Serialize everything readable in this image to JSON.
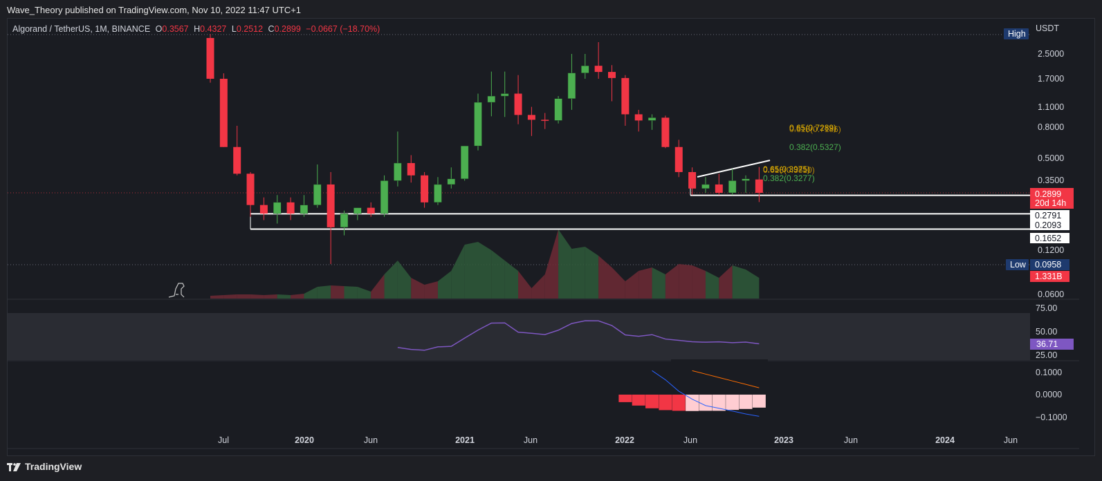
{
  "header": {
    "published": "Wave_Theory published on TradingView.com, Nov 10, 2022 11:47 UTC+1"
  },
  "legend": {
    "symbol": "Algorand / TetherUS, 1M, BINANCE",
    "o_label": "O",
    "o_value": "0.3567",
    "h_label": "H",
    "h_value": "0.4327",
    "l_label": "L",
    "l_value": "0.2512",
    "c_label": "C",
    "c_value": "0.2899",
    "change": "−0.0667 (−18.70%)"
  },
  "price_axis": {
    "currency": "USDT",
    "ticks": [
      "2.5000",
      "1.7000",
      "1.1000",
      "0.8000",
      "0.5000",
      "0.3500",
      "0.1200",
      "0.0600"
    ],
    "high_label": "High",
    "low_label": "Low",
    "low_value": "0.0958",
    "last_price": "0.2899",
    "countdown": "20d 14h",
    "level_1": "0.2791",
    "level_2": "0.2093",
    "level_3": "0.1652",
    "volume_value": "1.331B"
  },
  "rsi_axis": {
    "ticks": [
      "75.00",
      "50.00",
      "25.00"
    ],
    "value": "36.71"
  },
  "macd_axis": {
    "ticks": [
      "0.1000",
      "0.0000",
      "−0.1000"
    ]
  },
  "time_axis": [
    "Jul",
    "2020",
    "Jun",
    "2021",
    "Jun",
    "2022",
    "Jun",
    "2023",
    "Jun",
    "2024",
    "Jun"
  ],
  "fib_labels": {
    "upper_1": "0.65(0.7289)",
    "upper_2": "0.618(0.7186)",
    "upper_3": "0.382(0.5327)",
    "lower_1": "0.65(0.3975)",
    "lower_2": "0.618(0.3810)",
    "lower_3": "0.382(0.3277)"
  },
  "footer": {
    "brand": "TradingView"
  },
  "colors": {
    "up": "#4caf50",
    "down": "#f23645",
    "rsi": "#7e57c2",
    "macd": "#2962ff",
    "signal": "#ff6d00",
    "fib_yellow": "#e6b800",
    "fib_green": "#4caf50"
  },
  "chart_data": {
    "type": "candlestick",
    "title": "Algorand / TetherUS, 1M, BINANCE",
    "y_scale": "log",
    "candles": [
      {
        "date": "2019-06",
        "o": 3.2,
        "h": 3.4,
        "l": 1.6,
        "c": 1.7
      },
      {
        "date": "2019-07",
        "o": 1.7,
        "h": 1.85,
        "l": 0.59,
        "c": 0.59
      },
      {
        "date": "2019-08",
        "o": 0.59,
        "h": 0.82,
        "l": 0.38,
        "c": 0.39
      },
      {
        "date": "2019-09",
        "o": 0.39,
        "h": 0.4,
        "l": 0.2,
        "c": 0.24
      },
      {
        "date": "2019-10",
        "o": 0.24,
        "h": 0.27,
        "l": 0.19,
        "c": 0.21
      },
      {
        "date": "2019-11",
        "o": 0.21,
        "h": 0.28,
        "l": 0.18,
        "c": 0.25
      },
      {
        "date": "2019-12",
        "o": 0.25,
        "h": 0.27,
        "l": 0.19,
        "c": 0.21
      },
      {
        "date": "2020-01",
        "o": 0.21,
        "h": 0.28,
        "l": 0.2,
        "c": 0.24
      },
      {
        "date": "2020-02",
        "o": 0.24,
        "h": 0.45,
        "l": 0.23,
        "c": 0.33
      },
      {
        "date": "2020-03",
        "o": 0.33,
        "h": 0.4,
        "l": 0.096,
        "c": 0.17
      },
      {
        "date": "2020-04",
        "o": 0.17,
        "h": 0.22,
        "l": 0.15,
        "c": 0.21
      },
      {
        "date": "2020-05",
        "o": 0.21,
        "h": 0.23,
        "l": 0.19,
        "c": 0.23
      },
      {
        "date": "2020-06",
        "o": 0.23,
        "h": 0.25,
        "l": 0.2,
        "c": 0.21
      },
      {
        "date": "2020-07",
        "o": 0.21,
        "h": 0.38,
        "l": 0.2,
        "c": 0.35
      },
      {
        "date": "2020-08",
        "o": 0.35,
        "h": 0.75,
        "l": 0.32,
        "c": 0.46
      },
      {
        "date": "2020-09",
        "o": 0.46,
        "h": 0.52,
        "l": 0.34,
        "c": 0.38
      },
      {
        "date": "2020-10",
        "o": 0.38,
        "h": 0.4,
        "l": 0.23,
        "c": 0.25
      },
      {
        "date": "2020-11",
        "o": 0.25,
        "h": 0.37,
        "l": 0.24,
        "c": 0.33
      },
      {
        "date": "2020-12",
        "o": 0.33,
        "h": 0.43,
        "l": 0.31,
        "c": 0.36
      },
      {
        "date": "2021-01",
        "o": 0.36,
        "h": 0.6,
        "l": 0.35,
        "c": 0.6
      },
      {
        "date": "2021-02",
        "o": 0.6,
        "h": 1.35,
        "l": 0.56,
        "c": 1.18
      },
      {
        "date": "2021-03",
        "o": 1.18,
        "h": 1.9,
        "l": 0.95,
        "c": 1.3
      },
      {
        "date": "2021-04",
        "o": 1.3,
        "h": 1.9,
        "l": 0.94,
        "c": 1.35
      },
      {
        "date": "2021-05",
        "o": 1.35,
        "h": 1.8,
        "l": 0.84,
        "c": 0.97
      },
      {
        "date": "2021-06",
        "o": 0.97,
        "h": 1.1,
        "l": 0.7,
        "c": 0.9
      },
      {
        "date": "2021-07",
        "o": 0.9,
        "h": 1.0,
        "l": 0.78,
        "c": 0.89
      },
      {
        "date": "2021-08",
        "o": 0.89,
        "h": 1.3,
        "l": 0.85,
        "c": 1.25
      },
      {
        "date": "2021-09",
        "o": 1.25,
        "h": 2.5,
        "l": 1.05,
        "c": 1.86
      },
      {
        "date": "2021-10",
        "o": 1.86,
        "h": 2.5,
        "l": 1.7,
        "c": 2.08
      },
      {
        "date": "2021-11",
        "o": 2.08,
        "h": 3.0,
        "l": 1.7,
        "c": 1.89
      },
      {
        "date": "2021-12",
        "o": 1.89,
        "h": 2.1,
        "l": 1.2,
        "c": 1.72
      },
      {
        "date": "2022-01",
        "o": 1.72,
        "h": 1.8,
        "l": 0.82,
        "c": 0.98
      },
      {
        "date": "2022-02",
        "o": 0.98,
        "h": 1.05,
        "l": 0.75,
        "c": 0.89
      },
      {
        "date": "2022-03",
        "o": 0.89,
        "h": 0.98,
        "l": 0.77,
        "c": 0.93
      },
      {
        "date": "2022-04",
        "o": 0.93,
        "h": 0.96,
        "l": 0.58,
        "c": 0.59
      },
      {
        "date": "2022-05",
        "o": 0.59,
        "h": 0.66,
        "l": 0.37,
        "c": 0.4
      },
      {
        "date": "2022-06",
        "o": 0.4,
        "h": 0.43,
        "l": 0.28,
        "c": 0.31
      },
      {
        "date": "2022-07",
        "o": 0.31,
        "h": 0.37,
        "l": 0.29,
        "c": 0.33
      },
      {
        "date": "2022-08",
        "o": 0.33,
        "h": 0.39,
        "l": 0.28,
        "c": 0.29
      },
      {
        "date": "2022-09",
        "o": 0.29,
        "h": 0.42,
        "l": 0.28,
        "c": 0.35
      },
      {
        "date": "2022-10",
        "o": 0.35,
        "h": 0.38,
        "l": 0.29,
        "c": 0.36
      },
      {
        "date": "2022-11",
        "o": 0.3567,
        "h": 0.4327,
        "l": 0.2512,
        "c": 0.2899
      }
    ],
    "volume_relative": [
      0.04,
      0.05,
      0.06,
      0.06,
      0.05,
      0.06,
      0.05,
      0.07,
      0.17,
      0.19,
      0.18,
      0.17,
      0.1,
      0.35,
      0.55,
      0.3,
      0.2,
      0.25,
      0.4,
      0.78,
      0.82,
      0.7,
      0.55,
      0.4,
      0.15,
      0.35,
      1.0,
      0.72,
      0.75,
      0.62,
      0.45,
      0.25,
      0.4,
      0.45,
      0.35,
      0.5,
      0.48,
      0.4,
      0.3,
      0.48,
      0.42,
      0.3
    ],
    "rsi": [
      null,
      null,
      null,
      null,
      null,
      null,
      null,
      null,
      null,
      null,
      null,
      null,
      null,
      null,
      32.8,
      30.6,
      29.7,
      33.4,
      34.0,
      43.0,
      51.8,
      59.5,
      59.7,
      49.5,
      48.3,
      46.9,
      51.7,
      59.0,
      62.0,
      61.9,
      56.8,
      46.5,
      45.0,
      46.8,
      42.0,
      40.5,
      39.0,
      38.5,
      38.9,
      38.0,
      38.6,
      36.71
    ],
    "macd_hist": [
      null,
      null,
      null,
      null,
      null,
      null,
      null,
      null,
      null,
      null,
      null,
      null,
      null,
      null,
      null,
      null,
      null,
      null,
      null,
      null,
      null,
      null,
      null,
      null,
      null,
      null,
      null,
      null,
      null,
      null,
      null,
      -0.033,
      -0.048,
      -0.06,
      -0.068,
      -0.071,
      -0.072,
      -0.071,
      -0.071,
      -0.067,
      -0.063,
      -0.057
    ],
    "macd_line": [
      null,
      null,
      null,
      null,
      null,
      null,
      null,
      null,
      null,
      null,
      null,
      null,
      null,
      null,
      null,
      null,
      null,
      null,
      null,
      null,
      null,
      null,
      null,
      null,
      null,
      null,
      null,
      null,
      null,
      null,
      null,
      null,
      null,
      0.105,
      0.065,
      0.015,
      -0.02,
      -0.048,
      -0.06,
      -0.072,
      -0.085,
      -0.095
    ],
    "signal_line": [
      null,
      null,
      null,
      null,
      null,
      null,
      null,
      null,
      null,
      null,
      null,
      null,
      null,
      null,
      null,
      null,
      null,
      null,
      null,
      null,
      null,
      null,
      null,
      null,
      null,
      null,
      null,
      null,
      null,
      null,
      null,
      null,
      null,
      null,
      null,
      null,
      0.105,
      0.09,
      0.075,
      0.06,
      0.045,
      0.03
    ],
    "horizontal_levels": [
      0.2791,
      0.2093,
      0.1652
    ]
  }
}
